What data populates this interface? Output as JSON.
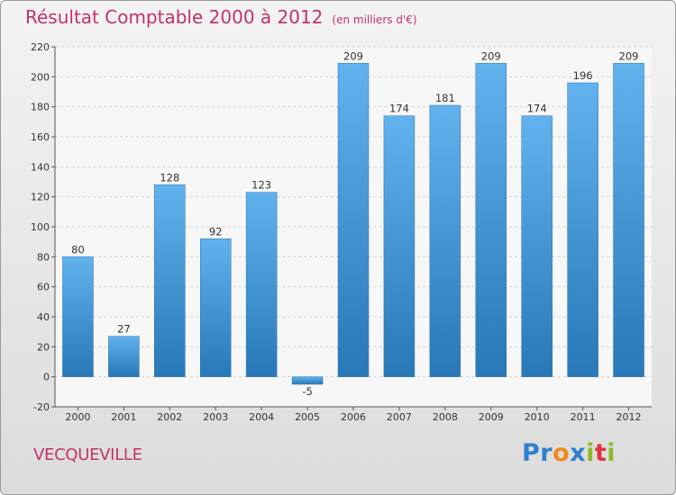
{
  "chart_data": {
    "type": "bar",
    "title": "Résultat Comptable 2000 à 2012",
    "subtitle": "(en milliers d'€)",
    "categories": [
      "2000",
      "2001",
      "2002",
      "2003",
      "2004",
      "2005",
      "2006",
      "2007",
      "2008",
      "2009",
      "2010",
      "2011",
      "2012"
    ],
    "values": [
      80,
      27,
      128,
      92,
      123,
      -5,
      209,
      174,
      181,
      209,
      174,
      196,
      209
    ],
    "value_labels": [
      "80",
      "27",
      "128",
      "92",
      "123",
      "-5",
      "209",
      "174",
      "181",
      "209",
      "174",
      "196",
      "209"
    ],
    "ylim": [
      -20,
      220
    ],
    "yticks": [
      -20,
      0,
      20,
      40,
      60,
      80,
      100,
      120,
      140,
      160,
      180,
      200,
      220
    ],
    "xlabel": "",
    "ylabel": "",
    "grid": true,
    "bar_color": "#3d8fd1"
  },
  "commune": "VECQUEVILLE",
  "logo": {
    "letters": [
      "P",
      "r",
      "o",
      "x",
      "i",
      "t",
      "i"
    ],
    "colors": [
      "#2f7fcf",
      "#2f7fcf",
      "#f08a1c",
      "#2f7fcf",
      "#8dbb2a",
      "#e0333c",
      "#8dbb2a"
    ]
  }
}
